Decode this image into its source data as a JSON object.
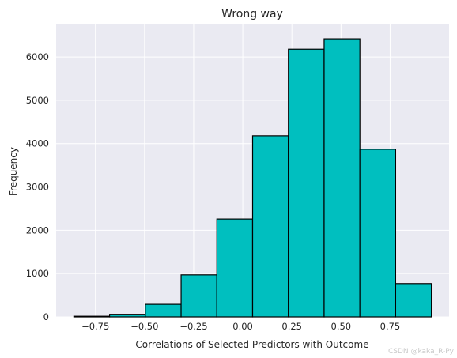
{
  "chart_data": {
    "type": "bar",
    "title": "Wrong way",
    "xlabel": "Correlations of Selected Predictors with Outcome",
    "ylabel": "Frequency",
    "bin_edges": [
      -0.86,
      -0.678,
      -0.496,
      -0.314,
      -0.132,
      0.05,
      0.232,
      0.414,
      0.596,
      0.778,
      0.96
    ],
    "values": [
      15,
      60,
      290,
      970,
      2260,
      4180,
      6180,
      6420,
      3870,
      770
    ],
    "xlim": [
      -0.95,
      1.05
    ],
    "ylim": [
      0,
      6750
    ],
    "xticks": [
      -0.75,
      -0.5,
      -0.25,
      0.0,
      0.25,
      0.5,
      0.75
    ],
    "xtick_labels": [
      "−0.75",
      "−0.50",
      "−0.25",
      "0.00",
      "0.25",
      "0.50",
      "0.75"
    ],
    "yticks": [
      0,
      1000,
      2000,
      3000,
      4000,
      5000,
      6000
    ],
    "ytick_labels": [
      "0",
      "1000",
      "2000",
      "3000",
      "4000",
      "5000",
      "6000"
    ],
    "grid": true,
    "colors": {
      "bar_fill": "#00bfbf",
      "bar_edge": "#000000",
      "plot_background": "#eaeaf2",
      "grid": "#ffffff"
    }
  },
  "watermark": "CSDN @kaka_R-Py"
}
